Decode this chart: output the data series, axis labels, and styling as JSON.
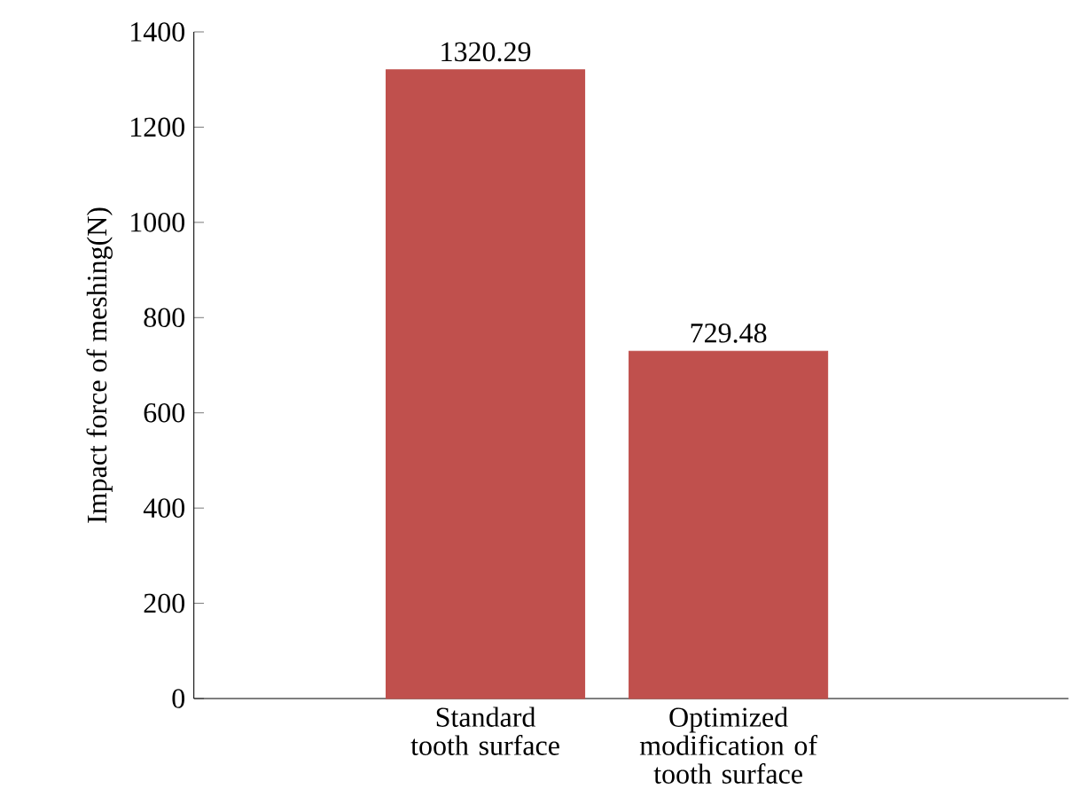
{
  "chart_data": {
    "type": "bar",
    "ylabel": "Impact force of meshing(N)",
    "categories": [
      "Standard tooth surface",
      "Optimized modification of tooth surface"
    ],
    "values": [
      1320.29,
      729.48
    ],
    "color": "#c0504d",
    "ylim": [
      0,
      1400
    ],
    "yticks": [
      0,
      200,
      400,
      600,
      800,
      1000,
      1200,
      1400
    ],
    "data_labels": true
  }
}
